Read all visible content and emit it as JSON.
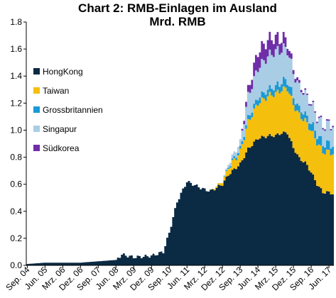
{
  "chart_data": {
    "type": "area",
    "stacked": true,
    "title": "Chart 2: RMB-Einlagen im Ausland",
    "subtitle": "Mrd. RMB",
    "xlabel": "",
    "ylabel": "",
    "ylim": [
      0,
      1.8
    ],
    "yticks": [
      "0.0",
      "0.2",
      "0.4",
      "0.6",
      "0.8",
      "1.0",
      "1.2",
      "1.4",
      "1.6",
      "1.8"
    ],
    "xticks": [
      "Sep. 04",
      "Jun. 05",
      "Mrz. 06",
      "Dez. 06",
      "Sep. 07",
      "Jun. 08",
      "Mrz. 09",
      "Dez. 09",
      "Sep. 10",
      "Jun. 11",
      "Mrz. 12",
      "Dez. 12",
      "Sep. 13",
      "Jun. 14",
      "Mrz. 15",
      "Dez. 15",
      "Sep. 16",
      "Jun. 17"
    ],
    "legend_position": "left",
    "grid": false,
    "keypoints_x": [
      "2004-09",
      "2005-06",
      "2006-03",
      "2006-12",
      "2007-09",
      "2008-06",
      "2008-09",
      "2009-03",
      "2009-12",
      "2010-06",
      "2010-09",
      "2011-01",
      "2011-06",
      "2011-09",
      "2011-12",
      "2012-03",
      "2012-06",
      "2012-12",
      "2013-03",
      "2013-09",
      "2014-01",
      "2014-06",
      "2014-12",
      "2015-03",
      "2015-06",
      "2015-09",
      "2015-12",
      "2016-03",
      "2016-06",
      "2016-09",
      "2016-12",
      "2017-03",
      "2017-06",
      "2017-08"
    ],
    "series": [
      {
        "name": "HongKong",
        "color": "#0b2a44",
        "values": [
          0.01,
          0.02,
          0.02,
          0.02,
          0.03,
          0.04,
          0.08,
          0.06,
          0.07,
          0.1,
          0.24,
          0.47,
          0.62,
          0.6,
          0.58,
          0.56,
          0.55,
          0.6,
          0.67,
          0.75,
          0.86,
          0.94,
          0.96,
          0.96,
          0.98,
          0.98,
          0.87,
          0.79,
          0.76,
          0.69,
          0.6,
          0.54,
          0.54,
          0.53
        ]
      },
      {
        "name": "Taiwan",
        "color": "#f5bf0e",
        "values": [
          0,
          0,
          0,
          0,
          0,
          0,
          0,
          0,
          0,
          0,
          0,
          0,
          0,
          0,
          0,
          0,
          0,
          0.02,
          0.05,
          0.09,
          0.2,
          0.26,
          0.3,
          0.31,
          0.32,
          0.33,
          0.32,
          0.32,
          0.31,
          0.31,
          0.31,
          0.3,
          0.3,
          0.3
        ]
      },
      {
        "name": "Grossbritannien",
        "color": "#1a9ad6",
        "values": [
          0,
          0,
          0,
          0,
          0,
          0,
          0,
          0,
          0,
          0,
          0,
          0,
          0,
          0,
          0,
          0,
          0,
          0,
          0.01,
          0.02,
          0.03,
          0.04,
          0.05,
          0.05,
          0.06,
          0.06,
          0.05,
          0.05,
          0.05,
          0.05,
          0.06,
          0.06,
          0.06,
          0.06
        ]
      },
      {
        "name": "Singapur",
        "color": "#a9cde5",
        "values": [
          0,
          0,
          0,
          0,
          0,
          0,
          0,
          0,
          0,
          0,
          0,
          0,
          0,
          0,
          0,
          0,
          0,
          0,
          0.02,
          0.05,
          0.16,
          0.22,
          0.25,
          0.26,
          0.24,
          0.23,
          0.18,
          0.16,
          0.15,
          0.14,
          0.13,
          0.13,
          0.14,
          0.15
        ]
      },
      {
        "name": "Südkorea",
        "color": "#6f2da8",
        "values": [
          0,
          0,
          0,
          0,
          0,
          0,
          0,
          0,
          0,
          0,
          0,
          0,
          0,
          0,
          0,
          0,
          0,
          0,
          0,
          0,
          0.05,
          0.12,
          0.12,
          0.1,
          0.08,
          0.06,
          0.03,
          0.02,
          0.01,
          0.01,
          0.01,
          0.01,
          0.01,
          0.01
        ]
      }
    ]
  }
}
